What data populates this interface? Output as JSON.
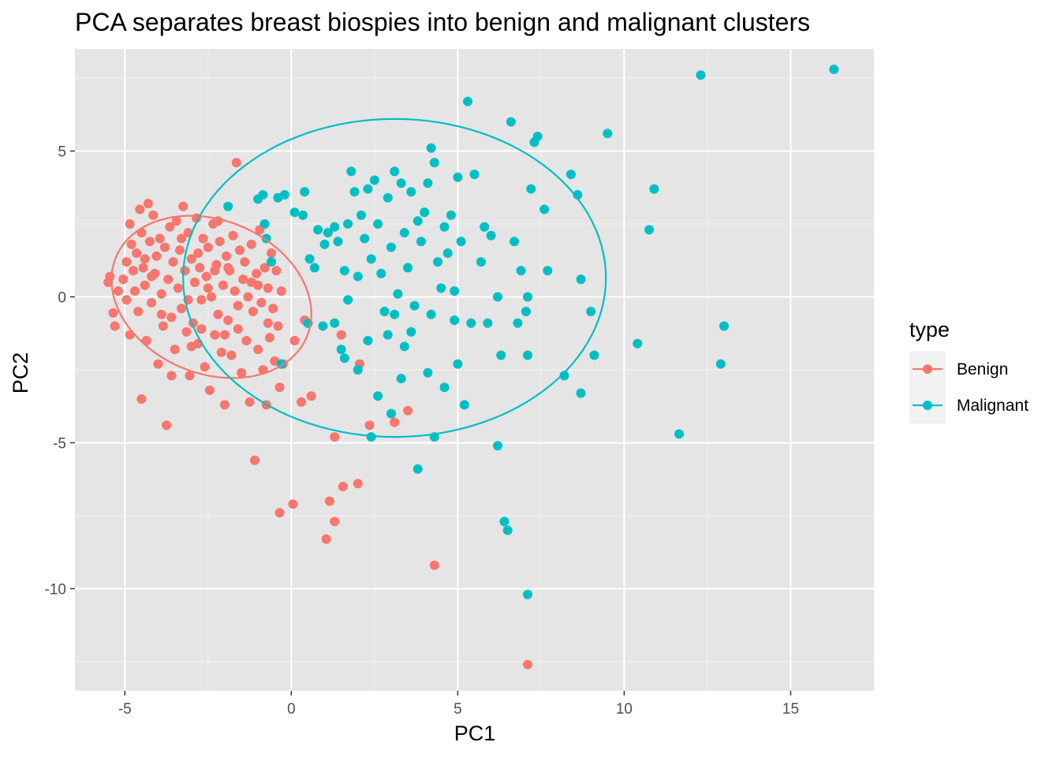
{
  "chart_data": {
    "type": "scatter",
    "title": "PCA separates breast biospies into benign and malignant clusters",
    "xlabel": "PC1",
    "ylabel": "PC2",
    "xlim": [
      -6.5,
      17.5
    ],
    "ylim": [
      -13.5,
      8.5
    ],
    "x_ticks": [
      -5,
      0,
      5,
      10,
      15
    ],
    "x_tick_labels": [
      "-5",
      "0",
      "5",
      "10",
      "15"
    ],
    "y_ticks": [
      -10,
      -5,
      0,
      5
    ],
    "y_tick_labels": [
      "-10",
      "-5",
      "0",
      "5"
    ],
    "grid": true,
    "background": "#E5E5E5",
    "legend": {
      "title": "type",
      "position": "right",
      "entries": [
        "Benign",
        "Malignant"
      ]
    },
    "series": [
      {
        "name": "Benign",
        "color": "#F8766D",
        "points": [
          [
            -5.5,
            0.5
          ],
          [
            -5.45,
            0.7
          ],
          [
            -5.35,
            -0.55
          ],
          [
            -5.3,
            -1.0
          ],
          [
            -5.2,
            0.2
          ],
          [
            -5.05,
            0.6
          ],
          [
            -4.95,
            1.2
          ],
          [
            -4.95,
            -0.1
          ],
          [
            -4.85,
            -1.3
          ],
          [
            -4.85,
            2.5
          ],
          [
            -4.8,
            1.8
          ],
          [
            -4.75,
            0.9
          ],
          [
            -4.7,
            0.2
          ],
          [
            -4.65,
            1.5
          ],
          [
            -4.6,
            -0.5
          ],
          [
            -4.55,
            3.0
          ],
          [
            -4.5,
            2.2
          ],
          [
            -4.5,
            -3.5
          ],
          [
            -4.45,
            1.0
          ],
          [
            -4.4,
            0.4
          ],
          [
            -4.35,
            -1.5
          ],
          [
            -4.3,
            3.2
          ],
          [
            -4.25,
            1.9
          ],
          [
            -4.2,
            -0.2
          ],
          [
            -4.15,
            2.8
          ],
          [
            -4.1,
            0.8
          ],
          [
            -4.05,
            1.4
          ],
          [
            -4.0,
            -2.3
          ],
          [
            -3.95,
            2.0
          ],
          [
            -3.9,
            0.1
          ],
          [
            -3.85,
            -1.0
          ],
          [
            -3.8,
            1.7
          ],
          [
            -3.75,
            -4.4
          ],
          [
            -3.7,
            0.6
          ],
          [
            -3.65,
            2.4
          ],
          [
            -3.6,
            -0.7
          ],
          [
            -3.55,
            1.2
          ],
          [
            -3.5,
            -1.8
          ],
          [
            -3.45,
            2.6
          ],
          [
            -3.4,
            0.3
          ],
          [
            -3.35,
            1.6
          ],
          [
            -3.3,
            -0.4
          ],
          [
            -3.25,
            3.1
          ],
          [
            -3.2,
            0.9
          ],
          [
            -3.15,
            -1.2
          ],
          [
            -3.1,
            2.2
          ],
          [
            -3.05,
            -2.7
          ],
          [
            -3.0,
            1.3
          ],
          [
            -2.95,
            -0.9
          ],
          [
            -2.9,
            0.5
          ],
          [
            -2.85,
            2.7
          ],
          [
            -2.8,
            -1.6
          ],
          [
            -2.75,
            1.0
          ],
          [
            -2.7,
            -0.1
          ],
          [
            -2.65,
            2.0
          ],
          [
            -2.6,
            -2.4
          ],
          [
            -2.55,
            0.7
          ],
          [
            -2.5,
            1.7
          ],
          [
            -2.45,
            -3.2
          ],
          [
            -2.4,
            0.0
          ],
          [
            -2.35,
            2.5
          ],
          [
            -2.3,
            -1.3
          ],
          [
            -2.25,
            1.1
          ],
          [
            -2.2,
            -0.6
          ],
          [
            -2.15,
            1.9
          ],
          [
            -2.1,
            -1.9
          ],
          [
            -2.05,
            0.4
          ],
          [
            -2.0,
            -3.7
          ],
          [
            -1.95,
            1.4
          ],
          [
            -1.9,
            -0.8
          ],
          [
            -1.85,
            0.9
          ],
          [
            -1.8,
            -2.0
          ],
          [
            -1.75,
            2.1
          ],
          [
            -1.7,
            0.2
          ],
          [
            -1.65,
            4.6
          ],
          [
            -1.6,
            -1.1
          ],
          [
            -1.55,
            1.6
          ],
          [
            -1.5,
            -2.6
          ],
          [
            -1.45,
            0.6
          ],
          [
            -1.4,
            1.2
          ],
          [
            -1.35,
            -1.5
          ],
          [
            -1.3,
            0.0
          ],
          [
            -1.25,
            -3.6
          ],
          [
            -1.2,
            1.8
          ],
          [
            -1.15,
            -0.5
          ],
          [
            -1.1,
            -5.6
          ],
          [
            -1.05,
            0.8
          ],
          [
            -1.0,
            -1.8
          ],
          [
            -0.95,
            2.3
          ],
          [
            -0.9,
            -0.2
          ],
          [
            -0.85,
            -2.5
          ],
          [
            -0.8,
            1.0
          ],
          [
            -0.75,
            -3.7
          ],
          [
            -0.7,
            0.3
          ],
          [
            -0.65,
            -1.4
          ],
          [
            -0.6,
            1.5
          ],
          [
            -0.55,
            -0.4
          ],
          [
            -0.5,
            -2.2
          ],
          [
            -0.45,
            0.9
          ],
          [
            -0.4,
            -1.0
          ],
          [
            -0.35,
            -3.1
          ],
          [
            -0.3,
            0.2
          ],
          [
            -0.25,
            -2.3
          ],
          [
            -0.35,
            -7.4
          ],
          [
            0.05,
            -7.1
          ],
          [
            0.1,
            -1.5
          ],
          [
            0.3,
            -3.6
          ],
          [
            0.4,
            -0.8
          ],
          [
            0.6,
            -3.4
          ],
          [
            1.05,
            -8.3
          ],
          [
            1.15,
            -7.0
          ],
          [
            1.3,
            -7.7
          ],
          [
            1.3,
            -4.8
          ],
          [
            1.5,
            -1.3
          ],
          [
            1.55,
            -6.5
          ],
          [
            2.0,
            -6.4
          ],
          [
            2.05,
            -2.3
          ],
          [
            2.35,
            -4.4
          ],
          [
            3.1,
            -4.3
          ],
          [
            3.5,
            -3.9
          ],
          [
            4.3,
            -9.2
          ],
          [
            7.1,
            -12.6
          ],
          [
            -3.6,
            -2.7
          ],
          [
            -2.7,
            -1.1
          ],
          [
            -2.3,
            0.9
          ],
          [
            -3.1,
            -0.1
          ],
          [
            -1.9,
            1.0
          ],
          [
            -2.5,
            0.3
          ],
          [
            -1.2,
            0.5
          ],
          [
            -3.9,
            -0.6
          ],
          [
            -4.2,
            0.7
          ],
          [
            -3.3,
            2.0
          ],
          [
            -2.0,
            -1.3
          ],
          [
            -1.0,
            0.4
          ],
          [
            -3.0,
            -1.7
          ],
          [
            -2.2,
            2.6
          ],
          [
            -1.6,
            -0.3
          ],
          [
            -4.4,
            1.3
          ],
          [
            -2.8,
            1.5
          ],
          [
            -0.7,
            -0.9
          ]
        ]
      },
      {
        "name": "Malignant",
        "color": "#00BFC4",
        "points": [
          [
            -1.9,
            3.1
          ],
          [
            -1.0,
            3.35
          ],
          [
            -0.85,
            3.5
          ],
          [
            -0.8,
            2.5
          ],
          [
            -0.75,
            2.0
          ],
          [
            -0.6,
            1.2
          ],
          [
            -0.4,
            3.4
          ],
          [
            -0.2,
            3.5
          ],
          [
            0.1,
            2.9
          ],
          [
            0.35,
            2.8
          ],
          [
            0.4,
            3.6
          ],
          [
            0.55,
            1.3
          ],
          [
            0.7,
            1.0
          ],
          [
            0.8,
            2.3
          ],
          [
            1.0,
            1.8
          ],
          [
            1.1,
            2.2
          ],
          [
            1.3,
            2.4
          ],
          [
            1.4,
            1.9
          ],
          [
            1.6,
            0.9
          ],
          [
            1.7,
            2.5
          ],
          [
            1.8,
            4.3
          ],
          [
            1.9,
            3.6
          ],
          [
            2.0,
            0.7
          ],
          [
            2.1,
            2.8
          ],
          [
            2.2,
            2.0
          ],
          [
            2.3,
            3.7
          ],
          [
            2.4,
            1.3
          ],
          [
            2.5,
            4.0
          ],
          [
            2.6,
            2.5
          ],
          [
            2.7,
            0.8
          ],
          [
            2.8,
            -0.5
          ],
          [
            2.9,
            3.4
          ],
          [
            3.0,
            1.7
          ],
          [
            3.1,
            4.3
          ],
          [
            3.2,
            0.1
          ],
          [
            3.3,
            3.9
          ],
          [
            3.4,
            2.2
          ],
          [
            3.5,
            1.0
          ],
          [
            3.6,
            3.6
          ],
          [
            3.7,
            -0.3
          ],
          [
            3.8,
            2.6
          ],
          [
            3.9,
            1.9
          ],
          [
            4.0,
            2.9
          ],
          [
            4.1,
            3.9
          ],
          [
            4.2,
            5.1
          ],
          [
            4.3,
            4.6
          ],
          [
            4.4,
            1.2
          ],
          [
            4.5,
            0.3
          ],
          [
            4.6,
            2.4
          ],
          [
            4.7,
            1.5
          ],
          [
            4.8,
            2.8
          ],
          [
            4.9,
            -0.8
          ],
          [
            5.0,
            4.1
          ],
          [
            5.1,
            1.9
          ],
          [
            5.3,
            6.7
          ],
          [
            5.5,
            4.2
          ],
          [
            5.7,
            1.2
          ],
          [
            5.9,
            -0.9
          ],
          [
            6.0,
            2.1
          ],
          [
            6.2,
            -5.1
          ],
          [
            6.4,
            -7.7
          ],
          [
            6.5,
            -8.0
          ],
          [
            6.6,
            6.0
          ],
          [
            6.7,
            1.9
          ],
          [
            6.9,
            0.9
          ],
          [
            7.05,
            -0.5
          ],
          [
            7.1,
            -2.0
          ],
          [
            7.2,
            3.7
          ],
          [
            7.3,
            5.3
          ],
          [
            7.4,
            5.5
          ],
          [
            7.6,
            3.0
          ],
          [
            7.7,
            0.9
          ],
          [
            8.2,
            -2.7
          ],
          [
            8.4,
            4.2
          ],
          [
            8.6,
            3.5
          ],
          [
            8.7,
            0.6
          ],
          [
            8.7,
            -3.3
          ],
          [
            9.0,
            -0.5
          ],
          [
            9.1,
            -2.0
          ],
          [
            9.5,
            5.6
          ],
          [
            10.4,
            -1.6
          ],
          [
            10.75,
            2.3
          ],
          [
            10.9,
            3.7
          ],
          [
            11.65,
            -4.7
          ],
          [
            12.3,
            7.6
          ],
          [
            12.9,
            -2.3
          ],
          [
            13.0,
            -1.0
          ],
          [
            16.3,
            7.8
          ],
          [
            7.1,
            -10.2
          ],
          [
            3.8,
            -5.9
          ],
          [
            2.4,
            -4.8
          ],
          [
            3.0,
            -4.0
          ],
          [
            4.3,
            -4.8
          ],
          [
            1.5,
            -1.8
          ],
          [
            2.0,
            -2.5
          ],
          [
            0.95,
            -1.0
          ],
          [
            1.3,
            -0.9
          ],
          [
            1.7,
            -0.1
          ],
          [
            2.3,
            -1.5
          ],
          [
            3.1,
            -0.6
          ],
          [
            3.6,
            -1.2
          ],
          [
            4.1,
            -2.6
          ],
          [
            4.6,
            -3.1
          ],
          [
            5.2,
            -3.7
          ],
          [
            5.0,
            -2.3
          ],
          [
            6.3,
            -2.0
          ],
          [
            6.8,
            -0.9
          ],
          [
            -0.3,
            -2.3
          ],
          [
            0.5,
            -0.9
          ],
          [
            2.9,
            -1.3
          ],
          [
            3.3,
            -2.8
          ],
          [
            4.9,
            0.2
          ],
          [
            5.4,
            -0.9
          ],
          [
            6.2,
            0.0
          ],
          [
            7.1,
            0.0
          ],
          [
            2.6,
            -3.4
          ],
          [
            3.4,
            -1.7
          ],
          [
            1.6,
            -2.1
          ],
          [
            4.2,
            -0.6
          ],
          [
            5.8,
            2.4
          ]
        ]
      }
    ],
    "ellipses": [
      {
        "series": "Benign",
        "center": [
          -2.4,
          0.0
        ],
        "radii": [
          3.2,
          2.55
        ],
        "rotation_deg": -35
      },
      {
        "series": "Malignant",
        "center": [
          3.1,
          0.65
        ],
        "radii": [
          6.35,
          5.45
        ],
        "rotation_deg": 0
      }
    ]
  }
}
